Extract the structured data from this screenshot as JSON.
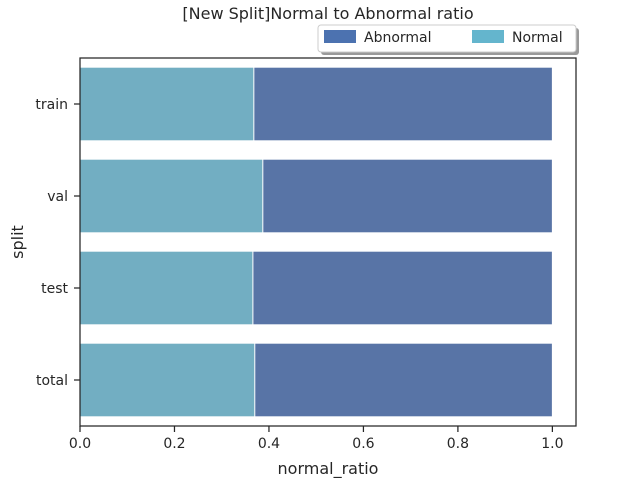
{
  "chart_data": {
    "type": "bar",
    "orientation": "horizontal",
    "stacked": "overlay",
    "title": "[New Split]Normal to Abnormal ratio",
    "xlabel": "normal_ratio",
    "ylabel": "split",
    "categories": [
      "train",
      "val",
      "test",
      "total"
    ],
    "xlim": [
      0,
      1.05
    ],
    "xticks": [
      "0.0",
      "0.2",
      "0.4",
      "0.6",
      "0.8",
      "1.0"
    ],
    "grid": false,
    "legend_position": "top-right",
    "series": [
      {
        "name": "Abnormal",
        "color": "#5874a6",
        "legend_color": "#4c72b0",
        "values": [
          1.0,
          1.0,
          1.0,
          1.0
        ]
      },
      {
        "name": "Normal",
        "color": "#72aec2",
        "legend_color": "#64b5cd",
        "values": [
          0.368,
          0.387,
          0.366,
          0.37
        ]
      }
    ]
  }
}
